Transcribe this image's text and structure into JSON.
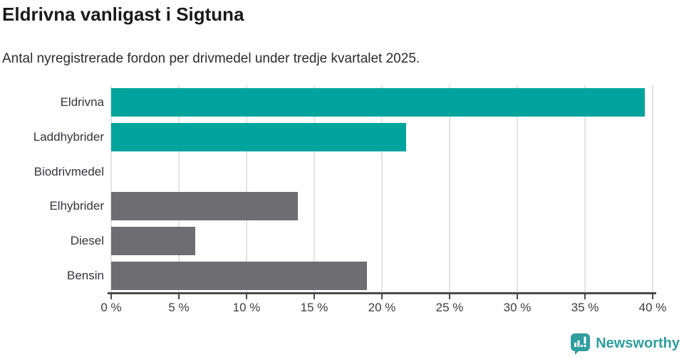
{
  "title": "Eldrivna vanligast i Sigtuna",
  "subtitle": "Antal nyregistrerade fordon per drivmedel under tredje kvartalet 2025.",
  "chart_data": {
    "type": "bar",
    "orientation": "horizontal",
    "categories": [
      "Eldrivna",
      "Laddhybrider",
      "Biodrivmedel",
      "Elhybrider",
      "Diesel",
      "Bensin"
    ],
    "values": [
      39.4,
      21.8,
      0,
      13.8,
      6.2,
      18.9
    ],
    "unit": "%",
    "xlim": [
      0,
      40
    ],
    "x_ticks": [
      0,
      5,
      10,
      15,
      20,
      25,
      30,
      35,
      40
    ],
    "x_tick_labels": [
      "0 %",
      "5 %",
      "10 %",
      "15 %",
      "20 %",
      "25 %",
      "30 %",
      "35 %",
      "40 %"
    ],
    "grid": true,
    "legend": "none",
    "bar_colors": [
      "#00a49c",
      "#00a49c",
      "#6d6d72",
      "#6d6d72",
      "#6d6d72",
      "#6d6d72"
    ]
  },
  "colors": {
    "teal": "#00a49c",
    "gray": "#6d6d72",
    "gridline": "#e3e3e3",
    "axis": "#4a4a4a",
    "title_text": "#1a1a1a",
    "subtitle_text": "#2b2b2b",
    "label_text": "#35353a",
    "tick_text": "#3d3d3d",
    "logo": "#2f9e9e"
  },
  "branding": {
    "logo_text": "Newsworthy",
    "logo_icon": "bar-chart-speech-bubble-icon"
  }
}
